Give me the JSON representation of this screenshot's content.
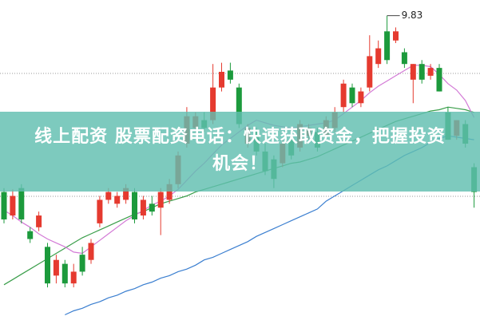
{
  "chart_data": {
    "type": "candlestick",
    "ylim": [
      7.5,
      9.95
    ],
    "up_color": "#e53a2f",
    "down_color": "#1c9a3c",
    "open": [
      8.48,
      8.3,
      8.51,
      8.18,
      8.21,
      8.06,
      7.84,
      7.93,
      7.78,
      8.0,
      7.96,
      8.24,
      8.42,
      8.39,
      8.42,
      8.48,
      8.3,
      8.39,
      8.36,
      8.42,
      8.54,
      8.85,
      8.97,
      9.03,
      9.03,
      9.28,
      9.41,
      9.28,
      8.85,
      8.94,
      8.79,
      8.73,
      8.7,
      8.88,
      8.82,
      8.91,
      8.94,
      8.91,
      8.97,
      9.13,
      9.28,
      9.16,
      9.28,
      9.46,
      9.71,
      9.64,
      9.55,
      9.34,
      9.46,
      9.37,
      9.43,
      9.09,
      8.91,
      9.0,
      8.67
    ],
    "high": [
      8.51,
      8.5,
      8.54,
      8.21,
      8.33,
      8.09,
      8.0,
      7.96,
      7.93,
      8.06,
      8.12,
      8.45,
      8.51,
      8.48,
      8.54,
      8.51,
      8.45,
      8.45,
      8.51,
      8.58,
      8.79,
      9.13,
      9.09,
      9.09,
      9.46,
      9.47,
      9.47,
      9.31,
      9.0,
      8.97,
      8.85,
      8.76,
      8.88,
      8.94,
      9.03,
      9.0,
      8.97,
      9.06,
      9.13,
      9.34,
      9.31,
      9.28,
      9.68,
      9.64,
      9.83,
      9.74,
      9.58,
      9.46,
      9.49,
      9.46,
      9.46,
      9.13,
      9.03,
      9.03,
      8.7
    ],
    "low": [
      8.24,
      8.27,
      8.24,
      8.09,
      8.18,
      7.75,
      7.78,
      7.75,
      7.75,
      7.84,
      7.93,
      8.21,
      8.39,
      8.36,
      8.39,
      8.24,
      8.27,
      8.3,
      8.15,
      8.39,
      8.51,
      8.82,
      8.94,
      8.94,
      9.0,
      9.25,
      9.31,
      8.97,
      8.82,
      8.76,
      8.61,
      8.51,
      8.67,
      8.73,
      8.79,
      8.88,
      8.79,
      8.88,
      8.94,
      9.09,
      9.13,
      9.13,
      9.25,
      9.43,
      9.46,
      9.62,
      9.43,
      9.16,
      9.31,
      9.34,
      9.25,
      8.88,
      8.88,
      8.82,
      8.36
    ],
    "close": [
      8.27,
      8.45,
      8.27,
      8.12,
      8.3,
      7.78,
      7.96,
      7.78,
      7.87,
      7.87,
      8.09,
      8.42,
      8.48,
      8.45,
      8.51,
      8.27,
      8.42,
      8.33,
      8.48,
      8.54,
      8.76,
      9.06,
      9.06,
      8.97,
      9.28,
      9.4,
      9.34,
      9.0,
      8.97,
      8.79,
      8.64,
      8.58,
      8.85,
      8.76,
      9.0,
      8.97,
      8.82,
      9.03,
      9.09,
      9.31,
      9.16,
      9.25,
      9.52,
      9.58,
      9.49,
      9.71,
      9.46,
      9.46,
      9.34,
      9.43,
      9.25,
      8.88,
      9.03,
      8.85,
      8.48
    ],
    "lines": [
      {
        "color": "#3a9e4a",
        "values": [
          7.77,
          7.81,
          7.85,
          7.89,
          7.93,
          7.97,
          8.01,
          8.05,
          8.09,
          8.13,
          8.16,
          8.19,
          8.22,
          8.25,
          8.28,
          8.31,
          8.33,
          8.36,
          8.39,
          8.41,
          8.43,
          8.45,
          8.48,
          8.5,
          8.52,
          8.54,
          8.56,
          8.58,
          8.6,
          8.62,
          8.64,
          8.66,
          8.68,
          8.7,
          8.71,
          8.73,
          8.75,
          8.78,
          8.81,
          8.84,
          8.87,
          8.9,
          8.93,
          8.96,
          8.99,
          9.02,
          9.04,
          9.06,
          9.08,
          9.1,
          9.11,
          9.13,
          9.12,
          9.11,
          9.09
        ]
      },
      {
        "color": "#d37ad6",
        "values": [
          8.34,
          8.3,
          8.25,
          8.21,
          8.16,
          8.12,
          8.09,
          8.06,
          8.02,
          8.01,
          8.06,
          8.11,
          8.16,
          8.21,
          8.26,
          8.3,
          8.34,
          8.38,
          8.41,
          8.45,
          8.5,
          8.57,
          8.64,
          8.7,
          8.77,
          8.84,
          8.89,
          8.94,
          8.99,
          9.03,
          9.01,
          8.99,
          8.98,
          8.97,
          8.98,
          8.99,
          9.0,
          9.01,
          9.03,
          9.08,
          9.13,
          9.18,
          9.24,
          9.29,
          9.33,
          9.37,
          9.41,
          9.45,
          9.45,
          9.44,
          9.38,
          9.31,
          9.26,
          9.18,
          9.05
        ]
      },
      {
        "color": "#3b7fd0",
        "values": [
          null,
          null,
          null,
          null,
          null,
          null,
          null,
          7.54,
          7.57,
          7.59,
          7.62,
          7.64,
          7.67,
          7.69,
          7.72,
          7.74,
          7.77,
          7.79,
          7.82,
          7.84,
          7.87,
          7.89,
          7.92,
          7.96,
          7.98,
          8.01,
          8.04,
          8.07,
          8.1,
          8.14,
          8.17,
          8.2,
          8.23,
          8.26,
          8.29,
          8.32,
          8.35,
          8.41,
          8.45,
          8.49,
          8.53,
          8.57,
          8.61,
          8.65,
          8.68,
          8.72,
          8.76,
          8.79,
          8.82,
          8.86,
          8.89,
          8.91,
          8.9,
          8.89,
          8.88
        ]
      }
    ],
    "annotation": {
      "text": "9.83",
      "index": 44
    }
  },
  "banner": {
    "lines": [
      "线上配资 股票配资电话：快速获取资金，把握投资",
      "机会！"
    ]
  }
}
